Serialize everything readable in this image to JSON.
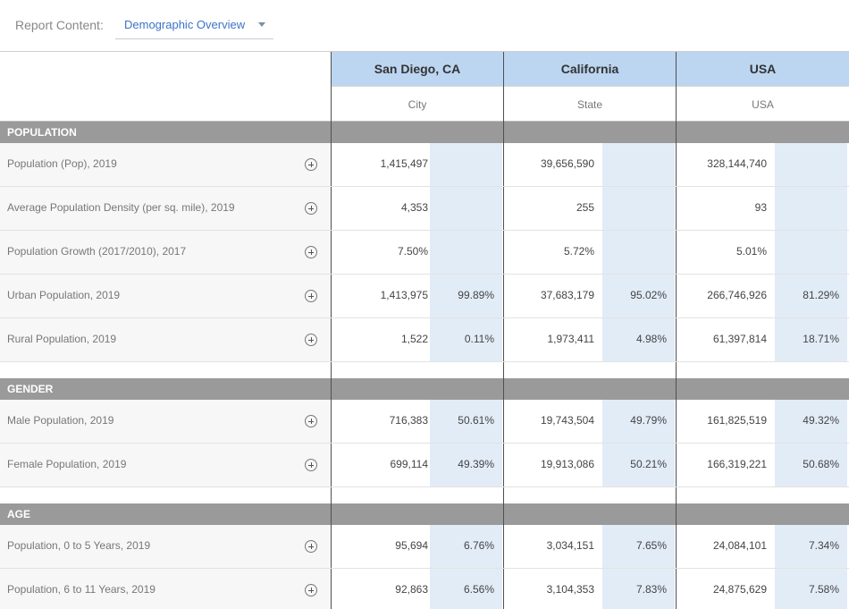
{
  "report": {
    "label": "Report Content:",
    "selected": "Demographic Overview"
  },
  "columns": [
    {
      "name": "San Diego, CA",
      "type": "City"
    },
    {
      "name": "California",
      "type": "State"
    },
    {
      "name": "USA",
      "type": "USA"
    }
  ],
  "sections": [
    {
      "title": "POPULATION",
      "rows": [
        {
          "label": "Population (Pop), 2019",
          "values": [
            "1,415,497",
            "",
            "39,656,590",
            "",
            "328,144,740",
            ""
          ]
        },
        {
          "label": "Average Population Density (per sq. mile), 2019",
          "values": [
            "4,353",
            "",
            "255",
            "",
            "93",
            ""
          ]
        },
        {
          "label": "Population Growth (2017/2010), 2017",
          "values": [
            "7.50%",
            "",
            "5.72%",
            "",
            "5.01%",
            ""
          ]
        },
        {
          "label": "Urban Population, 2019",
          "values": [
            "1,413,975",
            "99.89%",
            "37,683,179",
            "95.02%",
            "266,746,926",
            "81.29%"
          ]
        },
        {
          "label": "Rural Population, 2019",
          "values": [
            "1,522",
            "0.11%",
            "1,973,411",
            "4.98%",
            "61,397,814",
            "18.71%"
          ]
        }
      ]
    },
    {
      "title": "GENDER",
      "rows": [
        {
          "label": "Male Population, 2019",
          "values": [
            "716,383",
            "50.61%",
            "19,743,504",
            "49.79%",
            "161,825,519",
            "49.32%"
          ]
        },
        {
          "label": "Female Population, 2019",
          "values": [
            "699,114",
            "49.39%",
            "19,913,086",
            "50.21%",
            "166,319,221",
            "50.68%"
          ]
        }
      ]
    },
    {
      "title": "AGE",
      "rows": [
        {
          "label": "Population, 0 to 5 Years, 2019",
          "values": [
            "95,694",
            "6.76%",
            "3,034,151",
            "7.65%",
            "24,084,101",
            "7.34%"
          ]
        },
        {
          "label": "Population, 6 to 11 Years, 2019",
          "values": [
            "92,863",
            "6.56%",
            "3,104,353",
            "7.83%",
            "24,875,629",
            "7.58%"
          ]
        }
      ]
    }
  ]
}
